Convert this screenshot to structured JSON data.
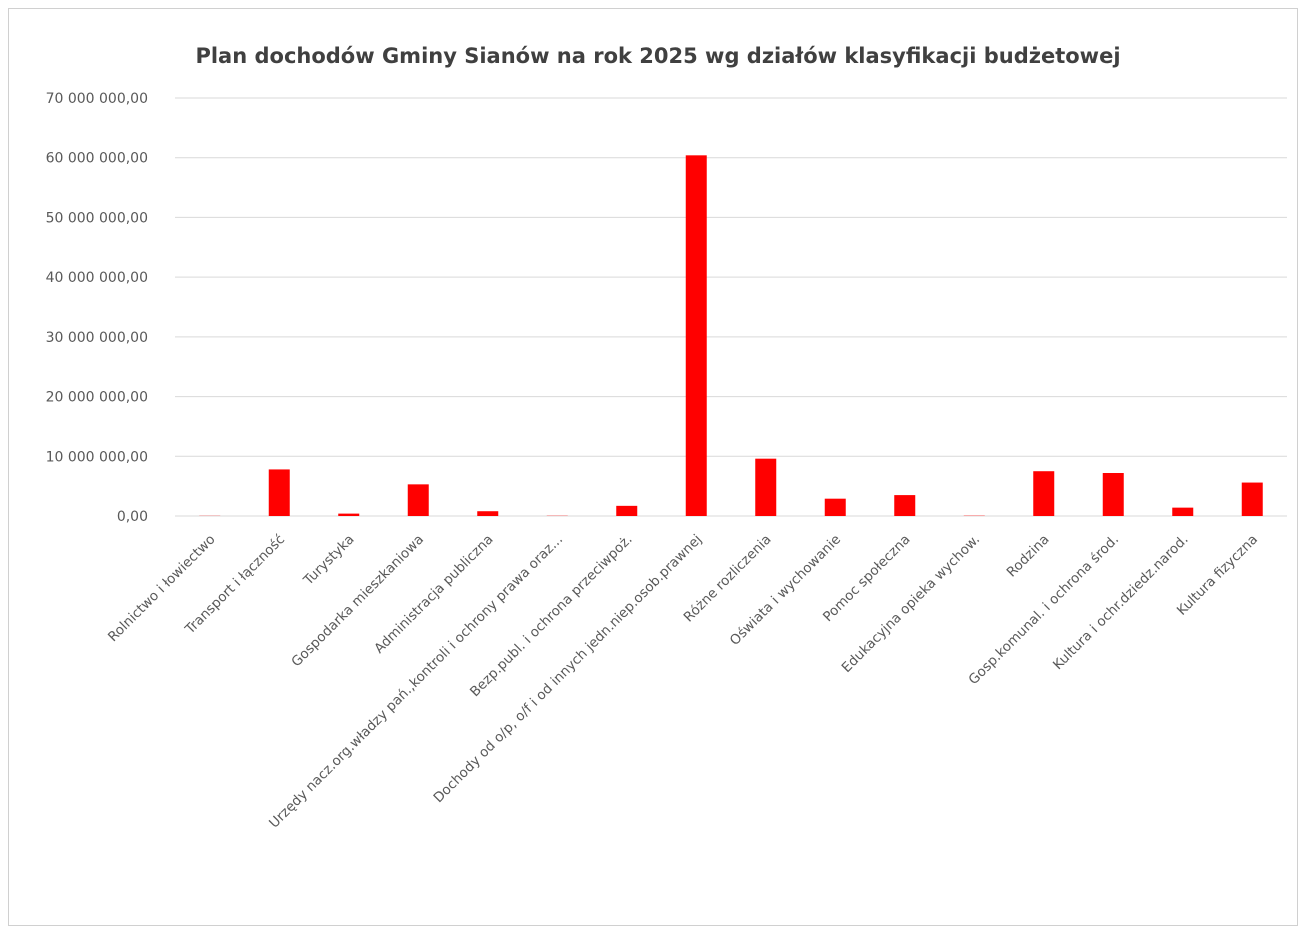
{
  "chart_data": {
    "type": "bar",
    "title": "Plan dochodów Gminy Sianów na rok 2025 wg działów klasyfikacji budżetowej",
    "categories": [
      "Rolnictwo i łowiectwo",
      "Transport i łączność",
      "Turystyka",
      "Gospodarka mieszkaniowa",
      "Administracja publiczna",
      "Urzędy nacz.org.władzy pań.,kontroli i ochrony prawa oraz...",
      "Bezp.publ. i ochrona przeciwpoż.",
      "Dochody od o/p, o/f i od innych jedn.niep.osob.prawnej",
      "Różne rozliczenia",
      "Oświata i wychowanie",
      "Pomoc społeczna",
      "Edukacyjna opieka wychow.",
      "Rodzina",
      "Gosp.komunal. i ochrona środ.",
      "Kultura i ochr.dziedz.narod.",
      "Kultura fizyczna"
    ],
    "values": [
      30000,
      7800000,
      400000,
      5300000,
      800000,
      40000,
      1700000,
      60400000,
      9600000,
      2900000,
      3500000,
      50000,
      7500000,
      7200000,
      1400000,
      5600000
    ],
    "ylim": [
      0,
      70000000
    ],
    "yticks": [
      "0,00",
      "10 000 000,00",
      "20 000 000,00",
      "30 000 000,00",
      "40 000 000,00",
      "50 000 000,00",
      "60 000 000,00",
      "70 000 000,00"
    ],
    "xlabel": "",
    "ylabel": "",
    "grid": true,
    "bar_color": "#ff0000"
  }
}
